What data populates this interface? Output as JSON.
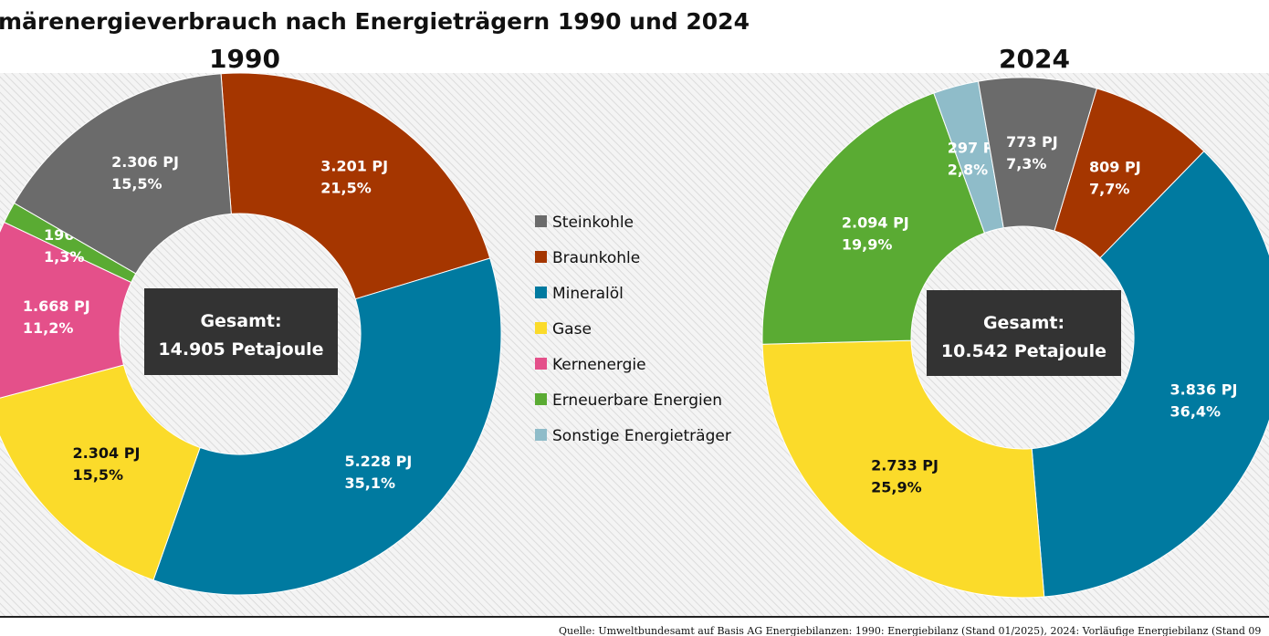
{
  "title": "märenergieverbrauch nach Energieträgern 1990 und 2024",
  "source": "Quelle: Umweltbundesamt auf Basis AG Energiebilanzen: 1990: Energiebilanz (Stand 01/2025), 2024: Vorläufige Energiebilanz (Stand 09",
  "colors": {
    "Steinkohle": "#6b6b6b",
    "Braunkohle": "#a53600",
    "Mineralöl": "#007aa0",
    "Gase": "#fbdb2a",
    "Kernenergie": "#e4508a",
    "Erneuerbare Energien": "#5aab33",
    "Sonstige Energieträger": "#8fbcc9"
  },
  "legend": [
    "Steinkohle",
    "Braunkohle",
    "Mineralöl",
    "Gase",
    "Kernenergie",
    "Erneuerbare Energien",
    "Sonstige Energieträger"
  ],
  "chart_data": [
    {
      "type": "pie",
      "donut": true,
      "title": "1990",
      "center_label": [
        "Gesamt:",
        "14.905 Petajoule"
      ],
      "slices": [
        {
          "name": "Braunkohle",
          "value": 3201,
          "label": "3.201 PJ",
          "percent": "21,5%"
        },
        {
          "name": "Mineralöl",
          "value": 5228,
          "label": "5.228 PJ",
          "percent": "35,1%"
        },
        {
          "name": "Gase",
          "value": 2304,
          "label": "2.304 PJ",
          "percent": "15,5%"
        },
        {
          "name": "Kernenergie",
          "value": 1668,
          "label": "1.668 PJ",
          "percent": "11,2%"
        },
        {
          "name": "Erneuerbare Energien",
          "value": 196,
          "label": "196 PJ",
          "percent": "1,3%"
        },
        {
          "name": "Steinkohle",
          "value": 2306,
          "label": "2.306 PJ",
          "percent": "15,5%"
        }
      ]
    },
    {
      "type": "pie",
      "donut": true,
      "title": "2024",
      "center_label": [
        "Gesamt:",
        "10.542 Petajoule"
      ],
      "slices": [
        {
          "name": "Braunkohle",
          "value": 809,
          "label": "809 PJ",
          "percent": "7,7%"
        },
        {
          "name": "Mineralöl",
          "value": 3836,
          "label": "3.836 PJ",
          "percent": "36,4%"
        },
        {
          "name": "Gase",
          "value": 2733,
          "label": "2.733 PJ",
          "percent": "25,9%"
        },
        {
          "name": "Erneuerbare Energien",
          "value": 2094,
          "label": "2.094 PJ",
          "percent": "19,9%"
        },
        {
          "name": "Sonstige Energieträger",
          "value": 297,
          "label": "297 PJ",
          "percent": "2,8%"
        },
        {
          "name": "Steinkohle",
          "value": 773,
          "label": "773 PJ",
          "percent": "7,3%"
        }
      ]
    }
  ]
}
